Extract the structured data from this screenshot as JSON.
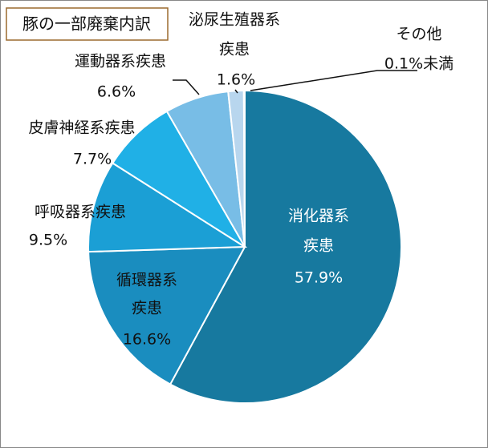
{
  "chart_data": {
    "type": "pie",
    "title": "豚の一部廃棄内訳",
    "categories": [
      [
        "消化器系",
        "疾患"
      ],
      [
        "循環器系",
        "疾患"
      ],
      [
        "呼吸器系疾患"
      ],
      [
        "皮膚神経系疾患"
      ],
      [
        "運動器系疾患"
      ],
      [
        "泌尿生殖器系",
        "疾患"
      ],
      [
        "その他"
      ]
    ],
    "values": [
      57.9,
      16.6,
      9.5,
      7.7,
      6.6,
      1.6,
      0.1
    ],
    "value_labels": [
      "57.9%",
      "16.6%",
      "9.5%",
      "7.7%",
      "6.6%",
      "1.6%",
      "0.1%未満"
    ],
    "colors": [
      "#17799f",
      "#1a8dbf",
      "#1b9fd5",
      "#20b0e6",
      "#78bde6",
      "#b8d6ee",
      "#dfeaf5"
    ]
  }
}
